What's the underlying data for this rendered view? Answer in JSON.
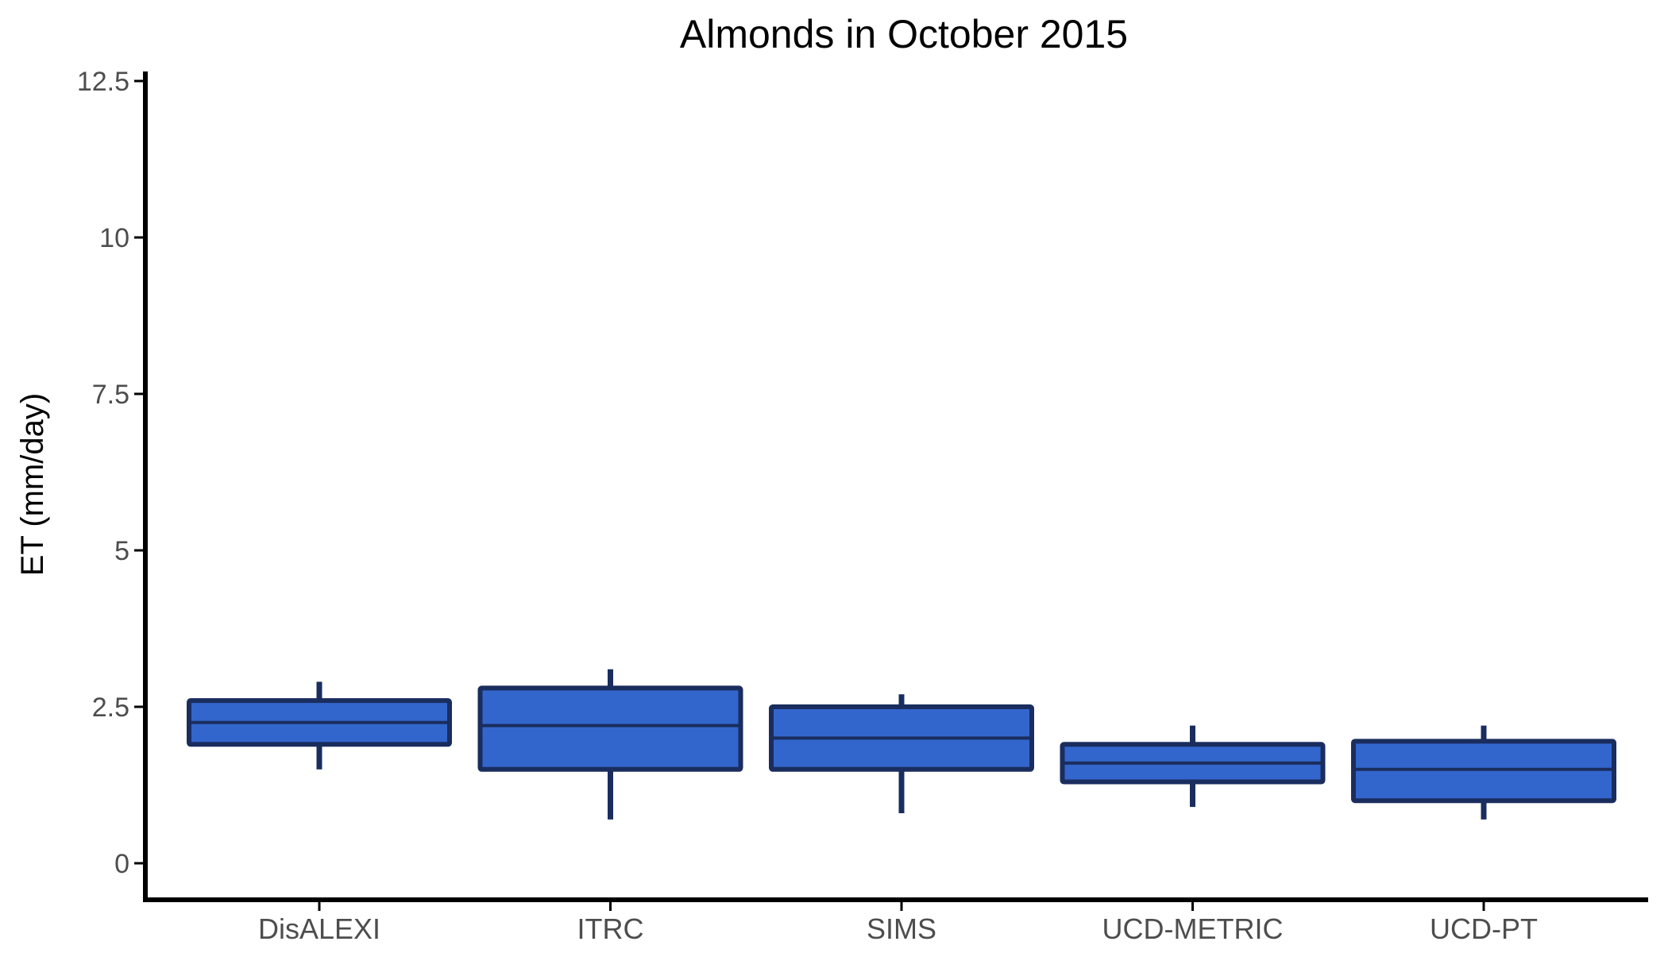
{
  "chart_data": {
    "type": "boxplot",
    "title": "Almonds in October 2015",
    "xlabel": "",
    "ylabel": "ET (mm/day)",
    "ylim": [
      -0.55,
      12.65
    ],
    "yticks": [
      0,
      2.5,
      5,
      7.5,
      10,
      12.5
    ],
    "ytick_labels": [
      "0",
      "2.5",
      "5",
      "7.5",
      "10",
      "12.5"
    ],
    "grid": false,
    "legend": "none",
    "categories": [
      "DisALEXI",
      "ITRC",
      "SIMS",
      "UCD-METRIC",
      "UCD-PT"
    ],
    "boxes": [
      {
        "category": "DisALEXI",
        "whisker_low": 1.5,
        "q1": 1.9,
        "median": 2.25,
        "q3": 2.6,
        "whisker_high": 2.9
      },
      {
        "category": "ITRC",
        "whisker_low": 0.7,
        "q1": 1.5,
        "median": 2.2,
        "q3": 2.8,
        "whisker_high": 3.1
      },
      {
        "category": "SIMS",
        "whisker_low": 0.8,
        "q1": 1.5,
        "median": 2.0,
        "q3": 2.5,
        "whisker_high": 2.7
      },
      {
        "category": "UCD-METRIC",
        "whisker_low": 0.9,
        "q1": 1.3,
        "median": 1.6,
        "q3": 1.9,
        "whisker_high": 2.2
      },
      {
        "category": "UCD-PT",
        "whisker_low": 0.7,
        "q1": 1.0,
        "median": 1.5,
        "q3": 1.95,
        "whisker_high": 2.2
      }
    ],
    "colors": {
      "box_fill": "#3366cc",
      "box_outline": "#1a2d5e",
      "axis": "#000000"
    }
  }
}
